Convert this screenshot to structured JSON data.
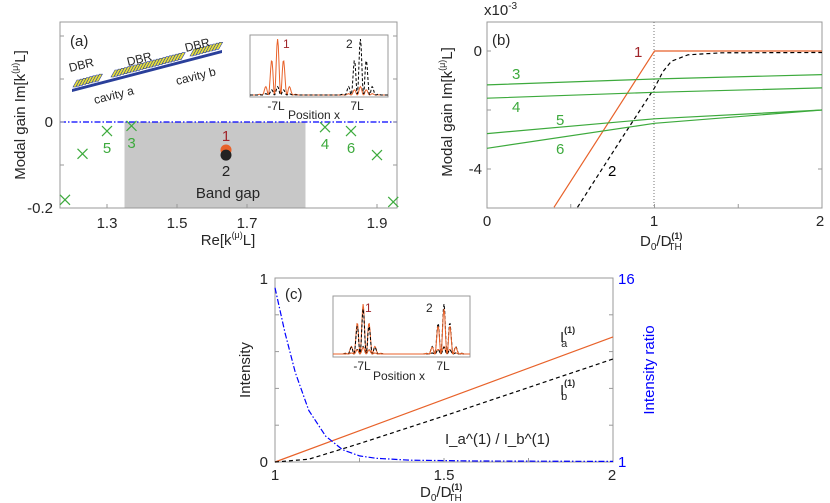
{
  "colors": {
    "orange": "#E8622A",
    "black": "#000000",
    "green": "#3DAA3D",
    "blue": "#0000FF",
    "darkred": "#A0252A",
    "bandgap": "#C8C8C8"
  },
  "chart_data": [
    {
      "panel": "(a)",
      "type": "scatter",
      "xlabel": {
        "pre": "Re[k",
        "sup": "(μ)",
        "post": "L]"
      },
      "ylabel": {
        "pre": "Modal gain Im[k",
        "sup": "(μ)",
        "post": "L]"
      },
      "xticks": [
        "1.3",
        "1.5",
        "1.7",
        "1.9"
      ],
      "yticks": [
        "0",
        "-0.2"
      ],
      "ylim": [
        -0.2,
        0.23
      ],
      "zero_line": {
        "y": 0,
        "style": "dash-dot",
        "color": "#0000FF"
      },
      "band_gap": {
        "label": "Band gap",
        "x_range": [
          1.35,
          1.79
        ]
      },
      "modes_outside": [
        {
          "x": 1.18,
          "y": -0.181,
          "label": ""
        },
        {
          "x": 1.23,
          "y": -0.074,
          "label": ""
        },
        {
          "x": 1.3,
          "y": -0.021,
          "label": "5"
        },
        {
          "x": 1.37,
          "y": -0.009,
          "label": "3"
        },
        {
          "x": 1.82,
          "y": -0.012,
          "label": "4"
        },
        {
          "x": 1.86,
          "y": -0.021,
          "label": "6"
        },
        {
          "x": 1.9,
          "y": -0.077,
          "label": ""
        },
        {
          "x": 1.925,
          "y": -0.186,
          "label": ""
        }
      ],
      "modes_gap": [
        {
          "x": 1.64,
          "y": -0.065,
          "label": "1",
          "color": "#E8622A"
        },
        {
          "x": 1.64,
          "y": -0.077,
          "label": "2",
          "color": "#222222"
        }
      ],
      "schematic": {
        "dbr_labels": [
          "DBR",
          "DBR",
          "DBR"
        ],
        "cavity_labels": [
          "cavity a",
          "cavity b"
        ]
      },
      "inset": {
        "xlabel": "Position x",
        "xticks": [
          "-7L",
          "7L"
        ],
        "labels": [
          "1",
          "2"
        ]
      }
    },
    {
      "panel": "(b)",
      "type": "line",
      "xlabel": {
        "pre": "D",
        "sub0": "0",
        "mid": "/D",
        "sup": "(1)",
        "sub": "TH"
      },
      "ylabel": {
        "pre": "Modal gain Im[k",
        "sup": "(μ)",
        "post": "L]"
      },
      "yscale_label": "x10",
      "yscale_exp": "-3",
      "xticks": [
        "0",
        "1",
        "2"
      ],
      "yticks": [
        "0",
        "-4"
      ],
      "xlim": [
        0,
        2
      ],
      "ylim": [
        -5.3,
        1.0
      ],
      "vline": {
        "x": 1,
        "style": "dotted"
      },
      "series": [
        {
          "label": "1",
          "color": "#E8622A",
          "dash": "solid",
          "points": [
            [
              0.4,
              -5.3
            ],
            [
              1,
              0
            ],
            [
              2,
              0
            ]
          ]
        },
        {
          "label": "2",
          "color": "#000000",
          "dash": "dashed",
          "points": [
            [
              0.54,
              -5.3
            ],
            [
              0.8,
              -3.0
            ],
            [
              1,
              -1.25
            ],
            [
              1.05,
              -0.7
            ],
            [
              1.1,
              -0.35
            ],
            [
              1.2,
              -0.13
            ],
            [
              1.4,
              -0.06
            ],
            [
              2,
              -0.05
            ]
          ]
        },
        {
          "label": "3",
          "color": "#3DAA3D",
          "dash": "solid",
          "points": [
            [
              0,
              -1.15
            ],
            [
              1,
              -0.95
            ],
            [
              2,
              -0.8
            ]
          ]
        },
        {
          "label": "4",
          "color": "#3DAA3D",
          "dash": "solid",
          "points": [
            [
              0,
              -1.6
            ],
            [
              1,
              -1.4
            ],
            [
              2,
              -1.25
            ]
          ]
        },
        {
          "label": "5",
          "color": "#3DAA3D",
          "dash": "solid",
          "points": [
            [
              0,
              -2.8
            ],
            [
              1,
              -2.3
            ],
            [
              2,
              -2.0
            ]
          ]
        },
        {
          "label": "6",
          "color": "#3DAA3D",
          "dash": "solid",
          "points": [
            [
              0,
              -3.3
            ],
            [
              1,
              -2.45
            ],
            [
              2,
              -2.0
            ]
          ]
        }
      ]
    },
    {
      "panel": "(c)",
      "type": "line",
      "xlabel": {
        "pre": "D",
        "sub0": "0",
        "mid": "/D",
        "sup": "(1)",
        "sub": "TH"
      },
      "ylabel": "Intensity",
      "ylabel_right": "Intensity ratio",
      "xticks": [
        "1",
        "1.5",
        "2"
      ],
      "yticks": [
        "0",
        "1"
      ],
      "yticks_right": [
        "1",
        "16"
      ],
      "xlim": [
        1,
        2
      ],
      "ylim": [
        0,
        1
      ],
      "ylim_right": [
        1,
        16
      ],
      "series": [
        {
          "label": "I",
          "sup": "(1)",
          "sub": "a",
          "color": "#E8622A",
          "dash": "solid",
          "axis": "left",
          "points": [
            [
              1,
              0
            ],
            [
              2,
              0.68
            ]
          ]
        },
        {
          "label": "I",
          "sup": "(1)",
          "sub": "b",
          "color": "#000000",
          "dash": "dashed",
          "axis": "left",
          "points": [
            [
              1,
              0
            ],
            [
              1.1,
              0.015
            ],
            [
              1.25,
              0.1
            ],
            [
              1.5,
              0.25
            ],
            [
              2,
              0.56
            ]
          ]
        },
        {
          "label": "I_a^(1) / I_b^(1)",
          "color": "#0000FF",
          "dash": "dash-dot",
          "axis": "right",
          "points": [
            [
              1,
              15.2
            ],
            [
              1.03,
              11.5
            ],
            [
              1.06,
              8.3
            ],
            [
              1.1,
              5.2
            ],
            [
              1.15,
              3.1
            ],
            [
              1.2,
              2.0
            ],
            [
              1.25,
              1.5
            ],
            [
              1.3,
              1.3
            ],
            [
              1.4,
              1.15
            ],
            [
              1.6,
              1.08
            ],
            [
              2,
              1.05
            ]
          ]
        }
      ],
      "inset": {
        "xlabel": "Position x",
        "xticks": [
          "-7L",
          "7L"
        ],
        "labels": [
          "1",
          "2"
        ]
      }
    }
  ]
}
